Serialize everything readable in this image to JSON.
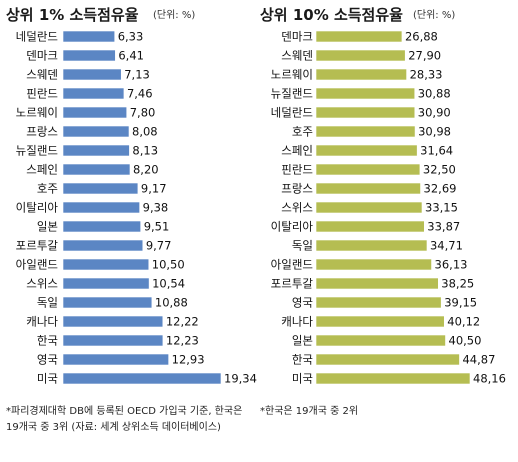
{
  "chart_data": [
    {
      "type": "bar",
      "orientation": "horizontal",
      "title": "상위 1% 소득점유율",
      "unit": "(단위: %)",
      "color": "#5b86c4",
      "categories": [
        "네덜란드",
        "덴마크",
        "스웨덴",
        "핀란드",
        "노르웨이",
        "프랑스",
        "뉴질랜드",
        "스페인",
        "호주",
        "이탈리아",
        "일본",
        "포르투갈",
        "아일랜드",
        "스위스",
        "독일",
        "캐나다",
        "한국",
        "영국",
        "미국"
      ],
      "values": [
        6.33,
        6.41,
        7.13,
        7.46,
        7.8,
        8.08,
        8.13,
        8.2,
        9.17,
        9.38,
        9.51,
        9.77,
        10.5,
        10.54,
        10.88,
        12.22,
        12.23,
        12.93,
        19.34
      ],
      "value_labels": [
        "6,33",
        "6,41",
        "7,13",
        "7,46",
        "7,80",
        "8,08",
        "8,13",
        "8,20",
        "9,17",
        "9,38",
        "9,51",
        "9,77",
        "10,50",
        "10,54",
        "10,88",
        "12,22",
        "12,23",
        "12,93",
        "19,34"
      ],
      "note": [
        "*파리경제대학 DB에 등록된 OECD 가입국 기준, 한국은",
        "19개국 중 3위   (자료: 세계 상위소득 데이터베이스)"
      ]
    },
    {
      "type": "bar",
      "orientation": "horizontal",
      "title": "상위 10% 소득점유율",
      "unit": "(단위: %)",
      "color": "#b5bd52",
      "categories": [
        "덴마크",
        "스웨덴",
        "노르웨이",
        "뉴질랜드",
        "네덜란드",
        "호주",
        "스페인",
        "핀란드",
        "프랑스",
        "스위스",
        "이탈리아",
        "독일",
        "아일랜드",
        "포르투갈",
        "영국",
        "캐나다",
        "일본",
        "한국",
        "미국"
      ],
      "values": [
        26.88,
        27.9,
        28.33,
        30.88,
        30.9,
        30.98,
        31.64,
        32.5,
        32.69,
        33.15,
        33.87,
        34.71,
        36.13,
        38.25,
        39.15,
        40.12,
        40.5,
        44.87,
        48.16
      ],
      "value_labels": [
        "26,88",
        "27,90",
        "28,33",
        "30,88",
        "30,90",
        "30,98",
        "31,64",
        "32,50",
        "32,69",
        "33,15",
        "33,87",
        "34,71",
        "36,13",
        "38,25",
        "39,15",
        "40,12",
        "40,50",
        "44,87",
        "48,16"
      ],
      "note": [
        "*한국은 19개국 중 2위"
      ]
    }
  ]
}
